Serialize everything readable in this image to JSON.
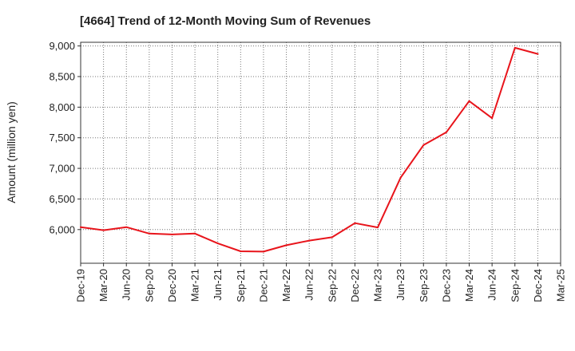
{
  "chart_data": {
    "type": "line",
    "title": "[4664]  Trend of 12-Month Moving Sum of Revenues",
    "xlabel": "",
    "ylabel": "Amount (million yen)",
    "categories": [
      "Dec-19",
      "Mar-20",
      "Jun-20",
      "Sep-20",
      "Dec-20",
      "Mar-21",
      "Jun-21",
      "Sep-21",
      "Dec-21",
      "Mar-22",
      "Jun-22",
      "Sep-22",
      "Dec-22",
      "Mar-23",
      "Jun-23",
      "Sep-23",
      "Dec-23",
      "Mar-24",
      "Jun-24",
      "Sep-24",
      "Dec-24",
      "Mar-25"
    ],
    "series": [
      {
        "name": "",
        "color": "#e8141b",
        "values": [
          6040,
          5990,
          6040,
          5935,
          5920,
          5935,
          5775,
          5645,
          5640,
          5745,
          5820,
          5875,
          6105,
          6035,
          6850,
          7380,
          7590,
          8100,
          7820,
          8970,
          8870,
          null
        ]
      }
    ],
    "ylim": [
      5450,
      9060
    ],
    "yticks": [
      6000,
      6500,
      7000,
      7500,
      8000,
      8500,
      9000
    ],
    "ytick_labels": [
      "6,000",
      "6,500",
      "7,000",
      "7,500",
      "8,000",
      "8,500",
      "9,000"
    ],
    "grid": true,
    "grid_style": "dotted",
    "legend": "none"
  }
}
